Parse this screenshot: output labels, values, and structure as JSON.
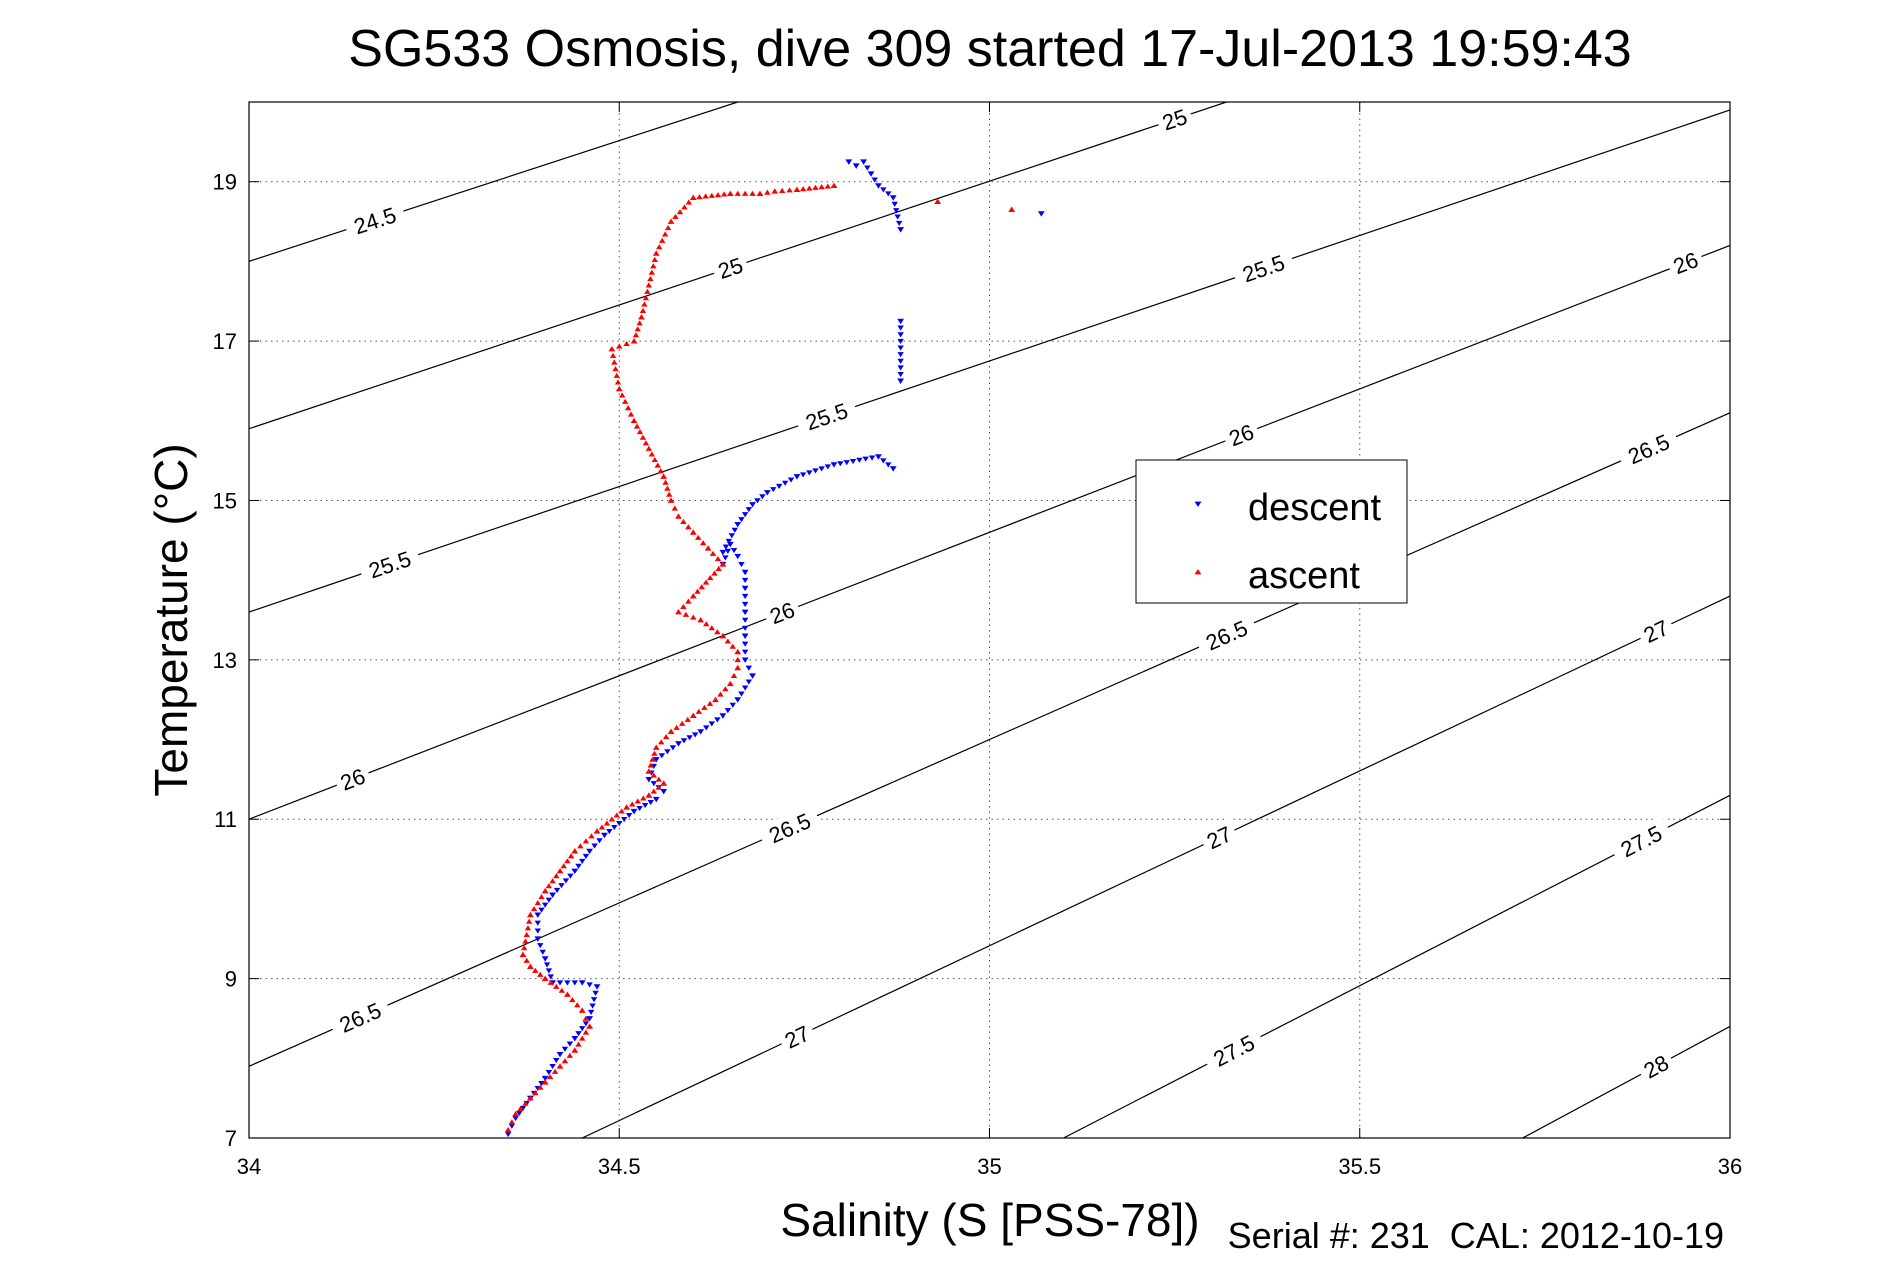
{
  "chart_data": {
    "type": "scatter",
    "title": "SG533 Osmosis, dive 309 started 17-Jul-2013 19:59:43",
    "xlabel": "Salinity (S [PSS-78])",
    "ylabel": "Temperature (°C)",
    "footer": "Serial #: 231  CAL: 2012-10-19",
    "xlim": [
      34,
      36
    ],
    "ylim": [
      7,
      20
    ],
    "xticks": [
      {
        "v": 34,
        "label": "34"
      },
      {
        "v": 34.5,
        "label": "34.5"
      },
      {
        "v": 35,
        "label": "35"
      },
      {
        "v": 35.5,
        "label": "35.5"
      },
      {
        "v": 36,
        "label": "36"
      }
    ],
    "yticks": [
      {
        "v": 7,
        "label": "7"
      },
      {
        "v": 9,
        "label": "9"
      },
      {
        "v": 11,
        "label": "11"
      },
      {
        "v": 13,
        "label": "13"
      },
      {
        "v": 15,
        "label": "15"
      },
      {
        "v": 17,
        "label": "17"
      },
      {
        "v": 19,
        "label": "19"
      }
    ],
    "grid": true,
    "legend_position": "right-middle",
    "contours": {
      "color": "#000000",
      "levels": [
        {
          "label": "24.5",
          "points": [
            [
              34.0,
              18.0
            ],
            [
              34.66,
              20.0
            ]
          ],
          "labels_at": [
            34.17
          ]
        },
        {
          "label": "25",
          "points": [
            [
              34.0,
              15.9
            ],
            [
              35.32,
              20.0
            ]
          ],
          "labels_at": [
            34.65,
            35.25
          ]
        },
        {
          "label": "25.5",
          "points": [
            [
              34.0,
              13.6
            ],
            [
              36.0,
              19.9
            ]
          ],
          "labels_at": [
            34.19,
            34.78,
            35.37
          ]
        },
        {
          "label": "26",
          "points": [
            [
              34.0,
              11.0
            ],
            [
              36.0,
              18.2
            ]
          ],
          "labels_at": [
            34.14,
            34.72,
            35.34,
            35.94
          ]
        },
        {
          "label": "26.5",
          "points": [
            [
              34.0,
              7.9
            ],
            [
              36.0,
              16.1
            ]
          ],
          "labels_at": [
            34.15,
            34.73,
            35.32,
            35.89
          ]
        },
        {
          "label": "27",
          "points": [
            [
              34.45,
              7.0
            ],
            [
              36.0,
              13.8
            ]
          ],
          "labels_at": [
            34.74,
            35.31,
            35.9
          ]
        },
        {
          "label": "27.5",
          "points": [
            [
              35.1,
              7.0
            ],
            [
              36.0,
              11.3
            ]
          ],
          "labels_at": [
            35.33,
            35.88
          ]
        },
        {
          "label": "28",
          "points": [
            [
              35.72,
              7.0
            ],
            [
              36.0,
              8.4
            ]
          ],
          "labels_at": [
            35.9
          ]
        }
      ]
    },
    "series": [
      {
        "name": "descent",
        "color": "#0000ff",
        "marker": "triangle-down",
        "x": [
          34.81,
          34.82,
          34.83,
          34.84,
          34.85,
          34.87,
          34.88,
          34.88,
          34.88,
          34.87,
          34.85,
          34.79,
          34.74,
          34.7,
          34.68,
          34.66,
          34.64,
          34.64,
          34.65,
          34.66,
          34.67,
          34.67,
          34.67,
          34.67,
          34.67,
          34.68,
          34.66,
          34.64,
          34.61,
          34.58,
          34.55,
          34.54,
          34.56,
          34.55,
          34.52,
          34.48,
          34.46,
          34.44,
          34.41,
          34.39,
          34.39,
          34.4,
          34.41,
          34.45,
          34.47,
          34.46,
          34.44,
          34.42,
          34.4,
          34.38,
          34.36,
          34.35,
          35.07
        ],
        "y": [
          19.25,
          19.2,
          19.25,
          19.1,
          18.95,
          18.8,
          18.4,
          17.25,
          16.5,
          15.4,
          15.55,
          15.45,
          15.3,
          15.1,
          14.95,
          14.7,
          14.35,
          14.2,
          14.45,
          14.3,
          14.1,
          13.9,
          13.6,
          13.3,
          13.0,
          12.8,
          12.5,
          12.3,
          12.1,
          11.95,
          11.75,
          11.5,
          11.35,
          11.25,
          11.1,
          10.8,
          10.6,
          10.35,
          10.05,
          9.8,
          9.5,
          9.25,
          8.95,
          8.95,
          8.9,
          8.5,
          8.25,
          8.05,
          7.75,
          7.5,
          7.25,
          7.05,
          18.6
        ]
      },
      {
        "name": "ascent",
        "color": "#ff0000",
        "marker": "triangle-up",
        "x": [
          34.79,
          34.74,
          34.71,
          34.69,
          34.65,
          34.6,
          34.57,
          34.55,
          34.53,
          34.52,
          34.49,
          34.5,
          34.52,
          34.56,
          34.57,
          34.58,
          34.6,
          34.62,
          34.64,
          34.6,
          34.58,
          34.61,
          34.64,
          34.66,
          34.66,
          34.65,
          34.63,
          34.6,
          34.57,
          34.55,
          34.54,
          34.56,
          34.54,
          34.51,
          34.47,
          34.44,
          34.42,
          34.4,
          34.38,
          34.37,
          34.38,
          34.4,
          34.43,
          34.45,
          34.46,
          34.44,
          34.42,
          34.4,
          34.38,
          34.36,
          34.35,
          35.03,
          34.93
        ],
        "y": [
          18.95,
          18.9,
          18.88,
          18.85,
          18.85,
          18.8,
          18.5,
          18.1,
          17.3,
          17.0,
          16.9,
          16.4,
          16.0,
          15.3,
          15.0,
          14.8,
          14.6,
          14.4,
          14.2,
          13.8,
          13.6,
          13.5,
          13.3,
          13.1,
          12.9,
          12.7,
          12.5,
          12.3,
          12.1,
          11.9,
          11.6,
          11.45,
          11.3,
          11.15,
          10.85,
          10.6,
          10.35,
          10.1,
          9.8,
          9.3,
          9.15,
          9.0,
          8.8,
          8.6,
          8.4,
          8.1,
          7.9,
          7.7,
          7.5,
          7.3,
          7.1,
          18.65,
          18.75
        ]
      }
    ]
  }
}
